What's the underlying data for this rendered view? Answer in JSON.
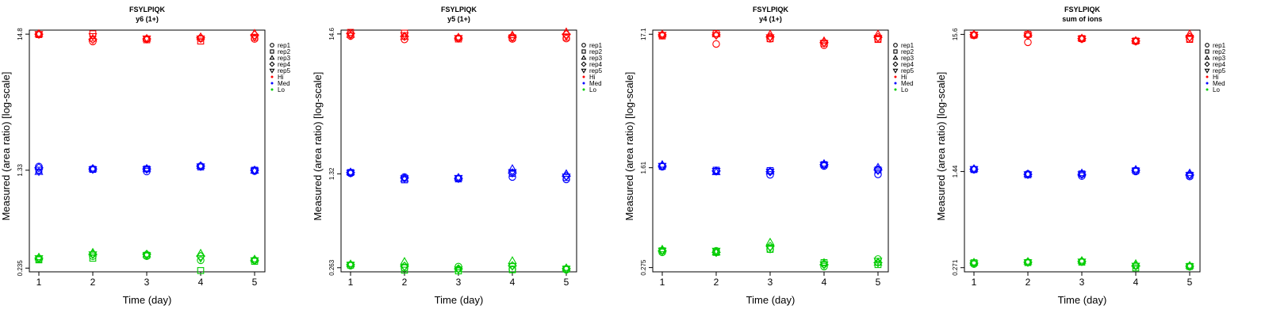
{
  "chart_data": [
    {
      "type": "scatter",
      "title": "FSYLPIQK",
      "subtitle": "y6 (1+)",
      "xlabel": "Time (day)",
      "ylabel": "Measured (area ratio) [log-scale]",
      "log_y": true,
      "x_ticks": [
        "1",
        "2",
        "3",
        "4",
        "5"
      ],
      "y_ticks": [
        {
          "value": 0.235,
          "label": "0.235"
        },
        {
          "value": 1.33,
          "label": "1.33"
        },
        {
          "value": 14.8,
          "label": "14.8"
        }
      ],
      "y_range": [
        0.22,
        15.9
      ],
      "legend": {
        "position": "right",
        "shapes": [
          {
            "label": "rep1",
            "shape": "circle"
          },
          {
            "label": "rep2",
            "shape": "square"
          },
          {
            "label": "rep3",
            "shape": "triangle-up"
          },
          {
            "label": "rep4",
            "shape": "diamond"
          },
          {
            "label": "rep5",
            "shape": "triangle-down"
          }
        ],
        "colors": [
          {
            "label": "Hi",
            "color": "#ff0000"
          },
          {
            "label": "Med",
            "color": "#0000ff"
          },
          {
            "label": "Lo",
            "color": "#00cc00"
          }
        ]
      },
      "series": [
        {
          "name": "Hi",
          "color": "#ff0000",
          "reps": [
            [
              14.7,
              14.7,
              14.9,
              14.8,
              14.8
            ],
            [
              13.0,
              14.9,
              13.7,
              13.5,
              14.3
            ],
            [
              13.6,
              13.4,
              13.7,
              13.6,
              13.7
            ],
            [
              13.7,
              13.1,
              14.1,
              13.9,
              13.7
            ],
            [
              13.6,
              14.0,
              15.0,
              14.6,
              14.0
            ]
          ]
        },
        {
          "name": "Med",
          "color": "#0000ff",
          "reps": [
            [
              1.42,
              1.33,
              1.29,
              1.39,
              1.3
            ],
            [
              1.36,
              1.35,
              1.37,
              1.36,
              1.35
            ],
            [
              1.3,
              1.36,
              1.37,
              1.36,
              1.35
            ],
            [
              1.43,
              1.41,
              1.44,
              1.43,
              1.42
            ],
            [
              1.31,
              1.33,
              1.32,
              1.33,
              1.32
            ]
          ]
        },
        {
          "name": "Lo",
          "color": "#00cc00",
          "reps": [
            [
              0.275,
              0.272,
              0.285,
              0.28,
              0.28
            ],
            [
              0.29,
              0.28,
              0.31,
              0.3,
              0.3
            ],
            [
              0.29,
              0.295,
              0.3,
              0.3,
              0.295
            ],
            [
              0.27,
              0.225,
              0.305,
              0.29,
              0.28
            ],
            [
              0.27,
              0.265,
              0.275,
              0.27,
              0.27
            ]
          ]
        }
      ]
    },
    {
      "type": "scatter",
      "title": "FSYLPIQK",
      "subtitle": "y5 (1+)",
      "xlabel": "Time (day)",
      "ylabel": "Measured (area ratio) [log-scale]",
      "log_y": true,
      "x_ticks": [
        "1",
        "2",
        "3",
        "4",
        "5"
      ],
      "y_ticks": [
        {
          "value": 0.263,
          "label": "0.263"
        },
        {
          "value": 1.32,
          "label": "1.32"
        },
        {
          "value": 14.6,
          "label": "14.6"
        }
      ],
      "y_range": [
        0.245,
        15.6
      ],
      "legend": {
        "position": "right",
        "shapes": [
          {
            "label": "rep1",
            "shape": "circle"
          },
          {
            "label": "rep2",
            "shape": "square"
          },
          {
            "label": "rep3",
            "shape": "triangle-up"
          },
          {
            "label": "rep4",
            "shape": "diamond"
          },
          {
            "label": "rep5",
            "shape": "triangle-down"
          }
        ],
        "colors": [
          {
            "label": "Hi",
            "color": "#ff0000"
          },
          {
            "label": "Med",
            "color": "#0000ff"
          },
          {
            "label": "Lo",
            "color": "#00cc00"
          }
        ]
      },
      "series": [
        {
          "name": "Hi",
          "color": "#ff0000",
          "reps": [
            [
              14.1,
              15.0,
              14.4,
              14.7,
              14.2
            ],
            [
              13.3,
              14.8,
              13.9,
              14.0,
              14.3
            ],
            [
              13.6,
              13.4,
              13.8,
              13.6,
              13.6
            ],
            [
              13.4,
              13.7,
              14.3,
              13.9,
              13.7
            ],
            [
              13.5,
              13.8,
              15.1,
              14.5,
              14.0
            ]
          ]
        },
        {
          "name": "Med",
          "color": "#0000ff",
          "reps": [
            [
              1.33,
              1.35,
              1.36,
              1.35,
              1.34
            ],
            [
              1.25,
              1.19,
              1.21,
              1.23,
              1.22
            ],
            [
              1.22,
              1.21,
              1.24,
              1.22,
              1.23
            ],
            [
              1.25,
              1.33,
              1.44,
              1.34,
              1.36
            ],
            [
              1.2,
              1.24,
              1.32,
              1.27,
              1.26
            ]
          ]
        },
        {
          "name": "Lo",
          "color": "#00cc00",
          "reps": [
            [
              0.272,
              0.275,
              0.28,
              0.277,
              0.276
            ],
            [
              0.262,
              0.252,
              0.292,
              0.27,
              0.265
            ],
            [
              0.268,
              0.249,
              0.256,
              0.258,
              0.255
            ],
            [
              0.256,
              0.254,
              0.296,
              0.272,
              0.27
            ],
            [
              0.254,
              0.257,
              0.262,
              0.259,
              0.258
            ]
          ]
        }
      ]
    },
    {
      "type": "scatter",
      "title": "FSYLPIQK",
      "subtitle": "y4 (1+)",
      "xlabel": "Time (day)",
      "ylabel": "Measured (area ratio) [log-scale]",
      "log_y": true,
      "x_ticks": [
        "1",
        "2",
        "3",
        "4",
        "5"
      ],
      "y_ticks": [
        {
          "value": 0.275,
          "label": "0.275"
        },
        {
          "value": 1.61,
          "label": "1.61"
        },
        {
          "value": 17.1,
          "label": "17.1"
        }
      ],
      "y_range": [
        0.255,
        18.4
      ],
      "legend": {
        "position": "right",
        "shapes": [
          {
            "label": "rep1",
            "shape": "circle"
          },
          {
            "label": "rep2",
            "shape": "square"
          },
          {
            "label": "rep3",
            "shape": "triangle-up"
          },
          {
            "label": "rep4",
            "shape": "diamond"
          },
          {
            "label": "rep5",
            "shape": "triangle-down"
          }
        ],
        "colors": [
          {
            "label": "Hi",
            "color": "#ff0000"
          },
          {
            "label": "Med",
            "color": "#0000ff"
          },
          {
            "label": "Lo",
            "color": "#00cc00"
          }
        ]
      },
      "series": [
        {
          "name": "Hi",
          "color": "#ff0000",
          "reps": [
            [
              16.8,
              16.6,
              17.1,
              16.9,
              16.9
            ],
            [
              14.4,
              17.3,
              17.1,
              16.9,
              16.8
            ],
            [
              15.8,
              15.8,
              17.1,
              16.3,
              16.2
            ],
            [
              14.1,
              14.6,
              15.2,
              14.8,
              14.6
            ],
            [
              15.7,
              15.6,
              17.1,
              16.2,
              16.0
            ]
          ]
        },
        {
          "name": "Med",
          "color": "#0000ff",
          "reps": [
            [
              1.64,
              1.65,
              1.7,
              1.66,
              1.66
            ],
            [
              1.51,
              1.54,
              1.49,
              1.52,
              1.52
            ],
            [
              1.42,
              1.53,
              1.51,
              1.5,
              1.5
            ],
            [
              1.66,
              1.7,
              1.73,
              1.7,
              1.69
            ],
            [
              1.43,
              1.55,
              1.62,
              1.55,
              1.53
            ]
          ]
        },
        {
          "name": "Lo",
          "color": "#00cc00",
          "reps": [
            [
              0.36,
              0.37,
              0.38,
              0.37,
              0.37
            ],
            [
              0.37,
              0.36,
              0.36,
              0.36,
              0.37
            ],
            [
              0.38,
              0.38,
              0.43,
              0.4,
              0.39
            ],
            [
              0.28,
              0.3,
              0.3,
              0.29,
              0.29
            ],
            [
              0.32,
              0.29,
              0.3,
              0.3,
              0.31
            ]
          ]
        }
      ]
    },
    {
      "type": "scatter",
      "title": "FSYLPIQK",
      "subtitle": "sum of ions",
      "xlabel": "Time (day)",
      "ylabel": "Measured (area ratio) [log-scale]",
      "log_y": true,
      "x_ticks": [
        "1",
        "2",
        "3",
        "4",
        "5"
      ],
      "y_ticks": [
        {
          "value": 0.271,
          "label": "0.271"
        },
        {
          "value": 1.44,
          "label": "1.44"
        },
        {
          "value": 15.6,
          "label": "15.6"
        }
      ],
      "y_range": [
        0.252,
        16.8
      ],
      "legend": {
        "position": "right",
        "shapes": [
          {
            "label": "rep1",
            "shape": "circle"
          },
          {
            "label": "rep2",
            "shape": "square"
          },
          {
            "label": "rep3",
            "shape": "triangle-up"
          },
          {
            "label": "rep4",
            "shape": "diamond"
          },
          {
            "label": "rep5",
            "shape": "triangle-down"
          }
        ],
        "colors": [
          {
            "label": "Hi",
            "color": "#ff0000"
          },
          {
            "label": "Med",
            "color": "#0000ff"
          },
          {
            "label": "Lo",
            "color": "#00cc00"
          }
        ]
      },
      "series": [
        {
          "name": "Hi",
          "color": "#ff0000",
          "reps": [
            [
              15.3,
              15.4,
              15.6,
              15.5,
              15.5
            ],
            [
              13.6,
              15.6,
              15.6,
              15.4,
              15.3
            ],
            [
              14.4,
              14.5,
              14.6,
              14.5,
              14.5
            ],
            [
              13.8,
              13.9,
              14.0,
              13.9,
              13.9
            ],
            [
              14.4,
              14.3,
              15.7,
              14.9,
              14.7
            ]
          ]
        },
        {
          "name": "Med",
          "color": "#0000ff",
          "reps": [
            [
              1.49,
              1.49,
              1.51,
              1.5,
              1.5
            ],
            [
              1.38,
              1.36,
              1.38,
              1.37,
              1.37
            ],
            [
              1.33,
              1.38,
              1.4,
              1.37,
              1.37
            ],
            [
              1.44,
              1.46,
              1.49,
              1.47,
              1.46
            ],
            [
              1.32,
              1.35,
              1.4,
              1.36,
              1.35
            ]
          ]
        },
        {
          "name": "Lo",
          "color": "#00cc00",
          "reps": [
            [
              0.288,
              0.295,
              0.297,
              0.293,
              0.292
            ],
            [
              0.298,
              0.296,
              0.301,
              0.298,
              0.297
            ],
            [
              0.301,
              0.298,
              0.306,
              0.302,
              0.301
            ],
            [
              0.279,
              0.27,
              0.29,
              0.28,
              0.28
            ],
            [
              0.275,
              0.277,
              0.281,
              0.278,
              0.277
            ]
          ]
        }
      ]
    }
  ]
}
